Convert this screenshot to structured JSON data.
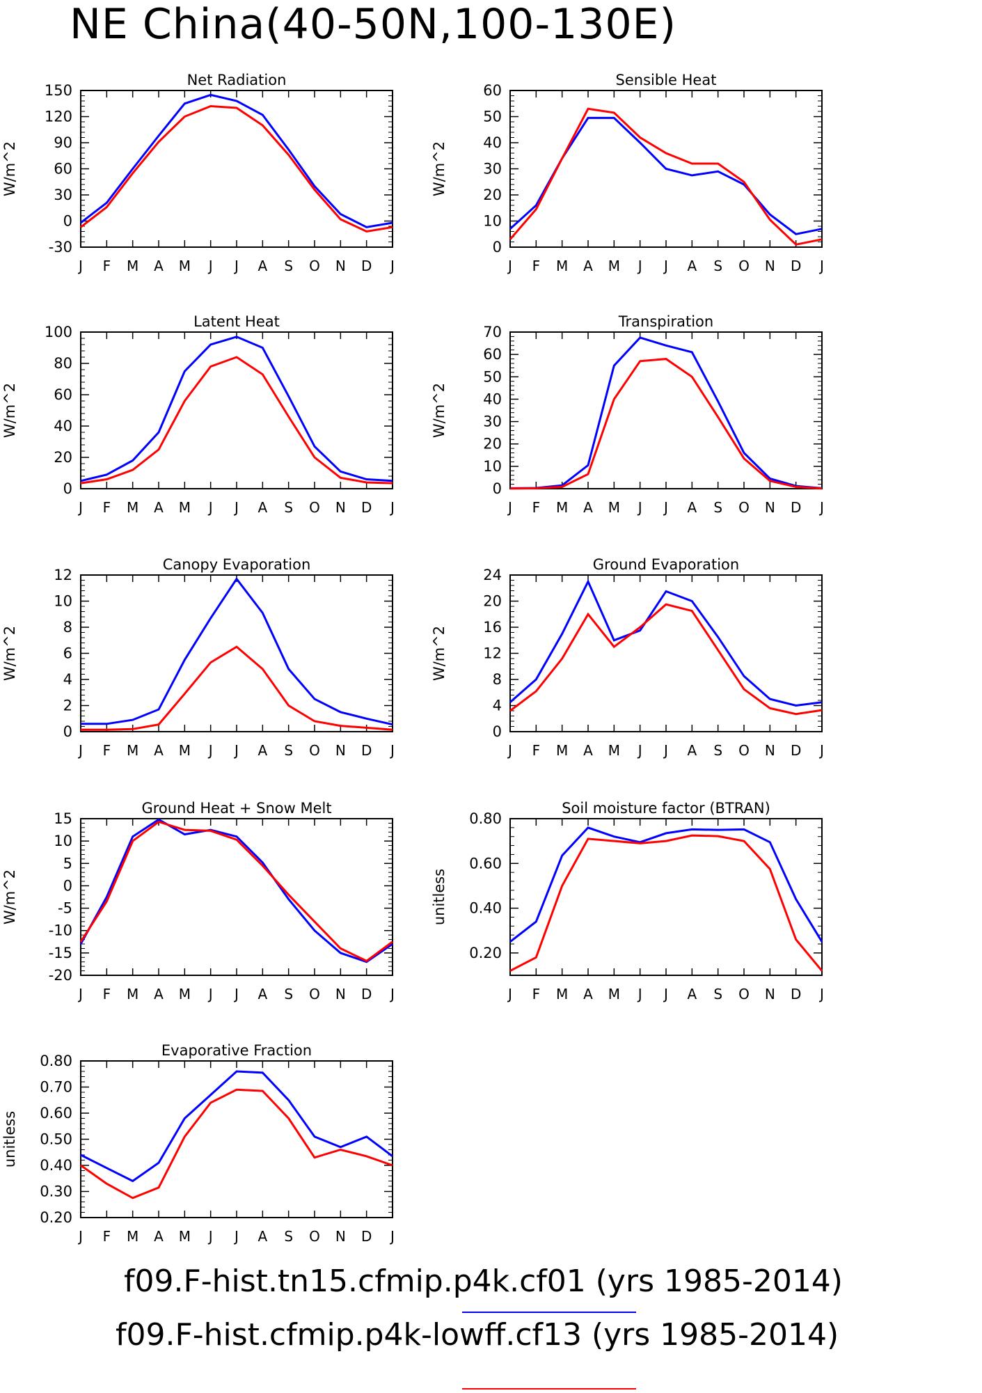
{
  "page": {
    "title": "NE China(40-50N,100-130E)"
  },
  "months": [
    "J",
    "F",
    "M",
    "A",
    "M",
    "J",
    "J",
    "A",
    "S",
    "O",
    "N",
    "D",
    "J"
  ],
  "legend": [
    {
      "label": "f09.F-hist.tn15.cfmip.p4k.cf01 (yrs 1985-2014)",
      "color": "#0000ff"
    },
    {
      "label": "f09.F-hist.cfmip.p4k-lowff.cf13 (yrs 1985-2014)",
      "color": "#ff0000"
    }
  ],
  "chart_data": [
    {
      "type": "line",
      "title": "Net Radiation",
      "ylabel": "W/m^2",
      "ylim": [
        -30,
        150
      ],
      "yticks": [
        -30,
        0,
        30,
        60,
        90,
        120,
        150
      ],
      "ytick_labels": [
        "-30",
        "0",
        "30",
        "60",
        "90",
        "120",
        "150"
      ],
      "series": [
        {
          "color": "#0000ff",
          "values": [
            -2,
            21,
            60,
            98,
            135,
            145,
            138,
            122,
            82,
            40,
            8,
            -7,
            -2
          ]
        },
        {
          "color": "#ff0000",
          "values": [
            -7,
            16,
            55,
            91,
            120,
            132,
            130,
            110,
            76,
            36,
            2,
            -12,
            -7
          ]
        }
      ]
    },
    {
      "type": "line",
      "title": "Sensible Heat",
      "ylabel": "W/m^2",
      "ylim": [
        0,
        60
      ],
      "yticks": [
        0,
        10,
        20,
        30,
        40,
        50,
        60
      ],
      "ytick_labels": [
        "0",
        "10",
        "20",
        "30",
        "40",
        "50",
        "60"
      ],
      "series": [
        {
          "color": "#0000ff",
          "values": [
            7,
            16,
            34,
            49.5,
            49.5,
            40,
            30,
            27.5,
            29,
            24,
            12.5,
            5,
            7
          ]
        },
        {
          "color": "#ff0000",
          "values": [
            3,
            14.5,
            34,
            53,
            51.5,
            42,
            36,
            32,
            32,
            25,
            10.5,
            1,
            3
          ]
        }
      ]
    },
    {
      "type": "line",
      "title": "Latent Heat",
      "ylabel": "W/m^2",
      "ylim": [
        0,
        100
      ],
      "yticks": [
        0,
        20,
        40,
        60,
        80,
        100
      ],
      "ytick_labels": [
        "0",
        "20",
        "40",
        "60",
        "80",
        "100"
      ],
      "series": [
        {
          "color": "#0000ff",
          "values": [
            5,
            9,
            18,
            36,
            75,
            92,
            97,
            90,
            59,
            27,
            11,
            6,
            5
          ]
        },
        {
          "color": "#ff0000",
          "values": [
            3.5,
            6,
            12,
            25,
            56,
            78,
            84,
            73,
            46,
            20,
            7,
            4,
            3.5
          ]
        }
      ]
    },
    {
      "type": "line",
      "title": "Transpiration",
      "ylabel": "W/m^2",
      "ylim": [
        0,
        70
      ],
      "yticks": [
        0,
        10,
        20,
        30,
        40,
        50,
        60,
        70
      ],
      "ytick_labels": [
        "0",
        "10",
        "20",
        "30",
        "40",
        "50",
        "60",
        "70"
      ],
      "series": [
        {
          "color": "#0000ff",
          "values": [
            0.2,
            0.3,
            1.5,
            10.5,
            55,
            67.5,
            64,
            61,
            39,
            16,
            4.5,
            1.2,
            0.2
          ]
        },
        {
          "color": "#ff0000",
          "values": [
            0.1,
            0.2,
            0.8,
            6.5,
            40,
            57,
            58,
            50,
            32,
            13.5,
            3.5,
            0.8,
            0.1
          ]
        }
      ]
    },
    {
      "type": "line",
      "title": "Canopy Evaporation",
      "ylabel": "W/m^2",
      "ylim": [
        0,
        12
      ],
      "yticks": [
        0,
        2,
        4,
        6,
        8,
        10,
        12
      ],
      "ytick_labels": [
        "0",
        "2",
        "4",
        "6",
        "8",
        "10",
        "12"
      ],
      "series": [
        {
          "color": "#0000ff",
          "values": [
            0.6,
            0.6,
            0.9,
            1.7,
            5.5,
            8.7,
            11.7,
            9.1,
            4.8,
            2.5,
            1.5,
            1.0,
            0.55
          ]
        },
        {
          "color": "#ff0000",
          "values": [
            0.15,
            0.15,
            0.2,
            0.55,
            2.9,
            5.3,
            6.5,
            4.8,
            2.0,
            0.8,
            0.45,
            0.3,
            0.15
          ]
        }
      ]
    },
    {
      "type": "line",
      "title": "Ground Evaporation",
      "ylabel": "W/m^2",
      "ylim": [
        0,
        24
      ],
      "yticks": [
        0,
        4,
        8,
        12,
        16,
        20,
        24
      ],
      "ytick_labels": [
        "0",
        "4",
        "8",
        "12",
        "16",
        "20",
        "24"
      ],
      "series": [
        {
          "color": "#0000ff",
          "values": [
            4.5,
            8,
            15,
            23,
            14,
            15.5,
            21.5,
            20,
            14.5,
            8.5,
            5,
            4,
            4.5
          ]
        },
        {
          "color": "#ff0000",
          "values": [
            3.2,
            6.2,
            11.2,
            18,
            13,
            16,
            19.5,
            18.5,
            12.5,
            6.5,
            3.6,
            2.7,
            3.3
          ]
        }
      ]
    },
    {
      "type": "line",
      "title": "Ground Heat + Snow Melt",
      "ylabel": "W/m^2",
      "ylim": [
        -20,
        15
      ],
      "yticks": [
        -20,
        -15,
        -10,
        -5,
        0,
        5,
        10,
        15
      ],
      "ytick_labels": [
        "-20",
        "-15",
        "-10",
        "-5",
        "0",
        "5",
        "10",
        "15"
      ],
      "series": [
        {
          "color": "#0000ff",
          "values": [
            -13,
            -2.5,
            11,
            14.8,
            11.5,
            12.5,
            11,
            5.2,
            -3,
            -10,
            -15,
            -17,
            -13
          ]
        },
        {
          "color": "#ff0000",
          "values": [
            -12.5,
            -3.5,
            10,
            14.3,
            12.5,
            12.3,
            10.3,
            4.5,
            -2,
            -8,
            -14,
            -16.8,
            -12.5
          ]
        }
      ]
    },
    {
      "type": "line",
      "title": "Soil moisture factor (BTRAN)",
      "ylabel": "unitless",
      "ylim": [
        0.1,
        0.8
      ],
      "yticks": [
        0.2,
        0.4,
        0.6,
        0.8
      ],
      "ytick_labels": [
        "0.20",
        "0.40",
        "0.60",
        "0.80"
      ],
      "series": [
        {
          "color": "#0000ff",
          "values": [
            0.25,
            0.34,
            0.635,
            0.76,
            0.72,
            0.695,
            0.735,
            0.752,
            0.75,
            0.752,
            0.695,
            0.44,
            0.25
          ]
        },
        {
          "color": "#ff0000",
          "values": [
            0.12,
            0.18,
            0.5,
            0.71,
            0.7,
            0.69,
            0.7,
            0.725,
            0.722,
            0.7,
            0.575,
            0.26,
            0.12
          ]
        }
      ]
    },
    {
      "type": "line",
      "title": "Evaporative Fraction",
      "ylabel": "unitless",
      "ylim": [
        0.2,
        0.8
      ],
      "yticks": [
        0.2,
        0.3,
        0.4,
        0.5,
        0.6,
        0.7,
        0.8
      ],
      "ytick_labels": [
        "0.20",
        "0.30",
        "0.40",
        "0.50",
        "0.60",
        "0.70",
        "0.80"
      ],
      "series": [
        {
          "color": "#0000ff",
          "values": [
            0.44,
            0.39,
            0.34,
            0.41,
            0.58,
            0.67,
            0.76,
            0.755,
            0.65,
            0.51,
            0.47,
            0.51,
            0.435
          ]
        },
        {
          "color": "#ff0000",
          "values": [
            0.4,
            0.33,
            0.275,
            0.315,
            0.51,
            0.64,
            0.69,
            0.685,
            0.58,
            0.43,
            0.46,
            0.435,
            0.4
          ]
        }
      ]
    }
  ]
}
